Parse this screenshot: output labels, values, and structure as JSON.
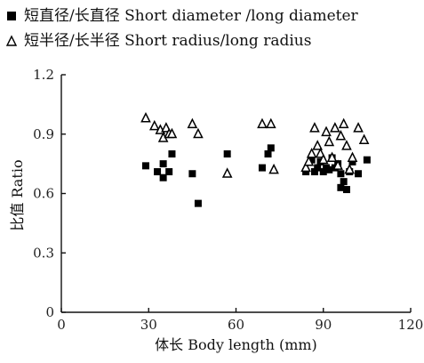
{
  "chart_data": {
    "type": "scatter",
    "x_label": "体长 Body length (mm)",
    "y_label": "比值 Ratio",
    "x_range": [
      0,
      120
    ],
    "y_range": [
      0,
      1.2
    ],
    "x_ticks": [
      "0",
      "30",
      "60",
      "90",
      "120"
    ],
    "y_ticks": [
      "0",
      "0.3",
      "0.6",
      "0.9",
      "1.2"
    ],
    "legend": [
      {
        "label": "短直径/长直径 Short diameter /long diameter",
        "marker": "filled-square",
        "color": "#000000"
      },
      {
        "label": "短半径/长半径 Short radius/long radius",
        "marker": "open-triangle",
        "color": "#000000"
      }
    ],
    "series": [
      {
        "name": "短直径/长直径 Short diameter /long diameter",
        "marker": "filled-square",
        "points": [
          {
            "x": 29,
            "y": 0.74
          },
          {
            "x": 33,
            "y": 0.71
          },
          {
            "x": 35,
            "y": 0.75
          },
          {
            "x": 35,
            "y": 0.68
          },
          {
            "x": 37,
            "y": 0.71
          },
          {
            "x": 38,
            "y": 0.8
          },
          {
            "x": 45,
            "y": 0.7
          },
          {
            "x": 47,
            "y": 0.55
          },
          {
            "x": 57,
            "y": 0.8
          },
          {
            "x": 69,
            "y": 0.73
          },
          {
            "x": 71,
            "y": 0.8
          },
          {
            "x": 72,
            "y": 0.83
          },
          {
            "x": 84,
            "y": 0.71
          },
          {
            "x": 86,
            "y": 0.77
          },
          {
            "x": 87,
            "y": 0.71
          },
          {
            "x": 88,
            "y": 0.73
          },
          {
            "x": 89,
            "y": 0.76
          },
          {
            "x": 90,
            "y": 0.71
          },
          {
            "x": 91,
            "y": 0.73
          },
          {
            "x": 92,
            "y": 0.72
          },
          {
            "x": 93,
            "y": 0.78
          },
          {
            "x": 94,
            "y": 0.73
          },
          {
            "x": 95,
            "y": 0.75
          },
          {
            "x": 96,
            "y": 0.63
          },
          {
            "x": 96,
            "y": 0.7
          },
          {
            "x": 97,
            "y": 0.66
          },
          {
            "x": 98,
            "y": 0.62
          },
          {
            "x": 99,
            "y": 0.71
          },
          {
            "x": 100,
            "y": 0.76
          },
          {
            "x": 102,
            "y": 0.7
          },
          {
            "x": 105,
            "y": 0.77
          }
        ]
      },
      {
        "name": "短半径/长半径 Short radius/long radius",
        "marker": "open-triangle",
        "points": [
          {
            "x": 29,
            "y": 0.98
          },
          {
            "x": 32,
            "y": 0.94
          },
          {
            "x": 34,
            "y": 0.92
          },
          {
            "x": 35,
            "y": 0.88
          },
          {
            "x": 36,
            "y": 0.93
          },
          {
            "x": 37,
            "y": 0.9
          },
          {
            "x": 38,
            "y": 0.9
          },
          {
            "x": 45,
            "y": 0.95
          },
          {
            "x": 47,
            "y": 0.9
          },
          {
            "x": 57,
            "y": 0.7
          },
          {
            "x": 69,
            "y": 0.95
          },
          {
            "x": 72,
            "y": 0.95
          },
          {
            "x": 73,
            "y": 0.72
          },
          {
            "x": 84,
            "y": 0.73
          },
          {
            "x": 85,
            "y": 0.76
          },
          {
            "x": 86,
            "y": 0.8
          },
          {
            "x": 87,
            "y": 0.93
          },
          {
            "x": 88,
            "y": 0.84
          },
          {
            "x": 89,
            "y": 0.8
          },
          {
            "x": 90,
            "y": 0.77
          },
          {
            "x": 91,
            "y": 0.91
          },
          {
            "x": 92,
            "y": 0.86
          },
          {
            "x": 93,
            "y": 0.78
          },
          {
            "x": 94,
            "y": 0.93
          },
          {
            "x": 95,
            "y": 0.74
          },
          {
            "x": 96,
            "y": 0.89
          },
          {
            "x": 97,
            "y": 0.95
          },
          {
            "x": 98,
            "y": 0.84
          },
          {
            "x": 99,
            "y": 0.72
          },
          {
            "x": 100,
            "y": 0.78
          },
          {
            "x": 102,
            "y": 0.93
          },
          {
            "x": 104,
            "y": 0.87
          }
        ]
      }
    ]
  }
}
